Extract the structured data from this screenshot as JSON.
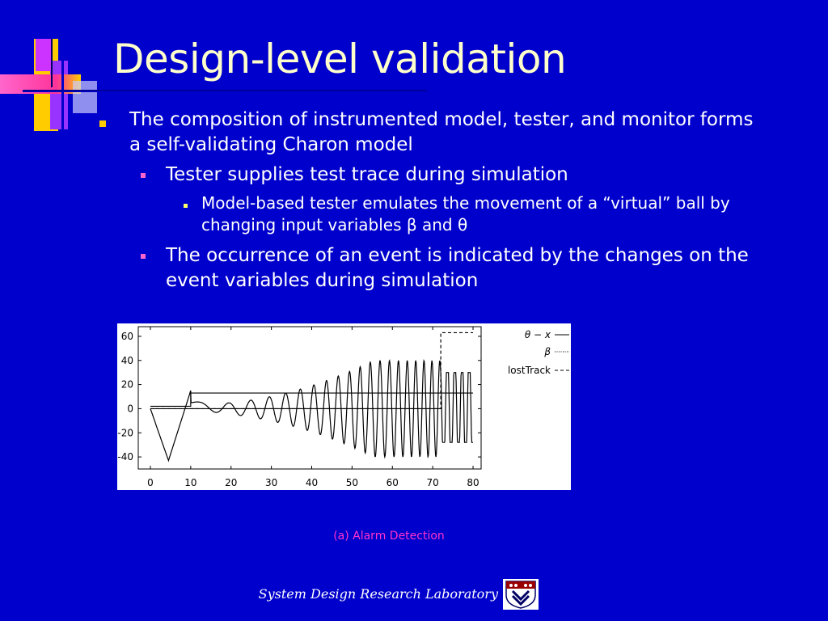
{
  "slide": {
    "title": "Design-level validation",
    "bullets": [
      {
        "level": 1,
        "text": "The composition of instrumented model, tester, and monitor forms a self-validating Charon model"
      },
      {
        "level": 2,
        "text": "Tester supplies test trace during simulation"
      },
      {
        "level": 3,
        "text": "Model-based tester emulates the movement of a “virtual” ball by changing input variables β and θ"
      },
      {
        "level": 2,
        "text": "The occurrence of an event is indicated by the changes on the event variables during simulation"
      }
    ],
    "caption": "(a) Alarm Detection",
    "footer": "System Design Research Laboratory"
  },
  "colors": {
    "background": "#0000cc",
    "title": "#ffffcc",
    "bullet_level1": "#ffcc00",
    "bullet_level2": "#ff66cc",
    "bullet_level3": "#ffff66",
    "caption": "#ff33cc"
  },
  "chart_data": {
    "type": "line",
    "x_ticks": [
      0,
      10,
      20,
      30,
      40,
      50,
      60,
      70,
      80
    ],
    "y_ticks": [
      60,
      40,
      20,
      0,
      -20,
      -40
    ],
    "xlim": [
      -3,
      82
    ],
    "ylim": [
      -50,
      68
    ],
    "legend_position": "top-right",
    "series": [
      {
        "name": "θ − x",
        "style": "solid",
        "description": "oscillating with growing amplitude"
      },
      {
        "name": "β",
        "style": "dotted"
      },
      {
        "name": "lostTrack",
        "style": "dashed",
        "x": [
          0,
          72,
          72,
          80
        ],
        "y": [
          0,
          0,
          63,
          63
        ]
      }
    ]
  }
}
